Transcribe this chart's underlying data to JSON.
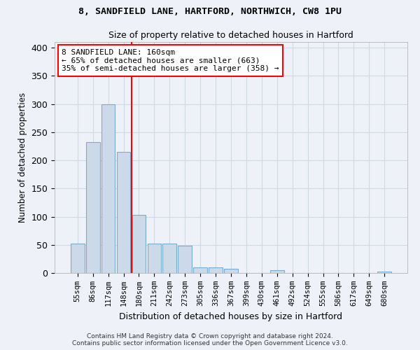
{
  "title1": "8, SANDFIELD LANE, HARTFORD, NORTHWICH, CW8 1PU",
  "title2": "Size of property relative to detached houses in Hartford",
  "xlabel": "Distribution of detached houses by size in Hartford",
  "ylabel": "Number of detached properties",
  "bar_labels": [
    "55sqm",
    "86sqm",
    "117sqm",
    "148sqm",
    "180sqm",
    "211sqm",
    "242sqm",
    "273sqm",
    "305sqm",
    "336sqm",
    "367sqm",
    "399sqm",
    "430sqm",
    "461sqm",
    "492sqm",
    "524sqm",
    "555sqm",
    "586sqm",
    "617sqm",
    "649sqm",
    "680sqm"
  ],
  "bar_values": [
    52,
    232,
    300,
    215,
    103,
    52,
    52,
    48,
    10,
    10,
    7,
    0,
    0,
    5,
    0,
    0,
    0,
    0,
    0,
    0,
    3
  ],
  "bar_color": "#ccd9e8",
  "bar_edge_color": "#7aaccf",
  "property_line_x": 3.5,
  "annotation_text": "8 SANDFIELD LANE: 160sqm\n← 65% of detached houses are smaller (663)\n35% of semi-detached houses are larger (358) →",
  "annotation_box_color": "white",
  "annotation_box_edge": "red",
  "vline_color": "red",
  "ylim": [
    0,
    410
  ],
  "yticks": [
    0,
    50,
    100,
    150,
    200,
    250,
    300,
    350,
    400
  ],
  "footer_line1": "Contains HM Land Registry data © Crown copyright and database right 2024.",
  "footer_line2": "Contains public sector information licensed under the Open Government Licence v3.0.",
  "bg_color": "#eef2f8",
  "grid_color": "#d0d8e8",
  "plot_bg_color": "#eef2f8"
}
